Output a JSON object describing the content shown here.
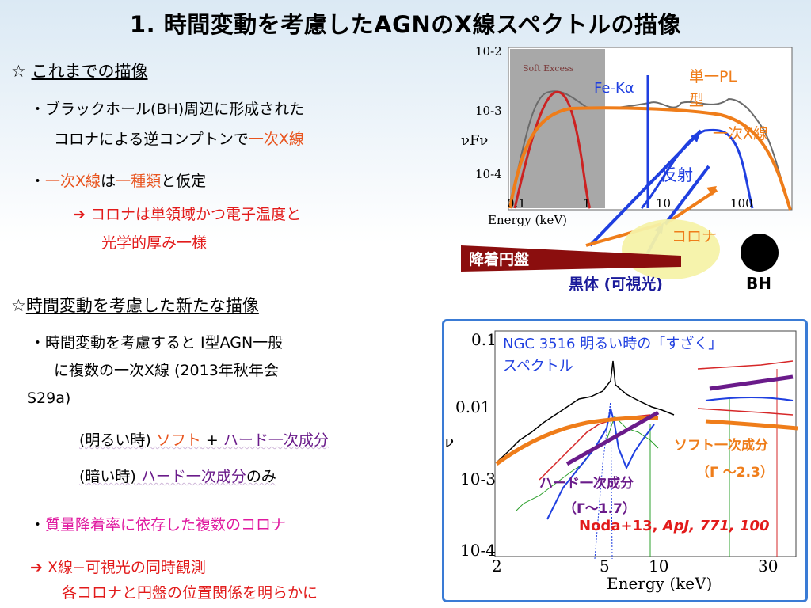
{
  "title": "1. 時間変動を考慮したAGNのX線スペクトルの描像",
  "section1": {
    "star": "☆",
    "heading": "これまでの描像",
    "bullet1_line1": "・ブラックホール(BH)周辺に形成された",
    "bullet1_line2_a": "コロナによる逆コンプトンで",
    "bullet1_line2_b": "一次X線",
    "bullet2_dot": "・",
    "bullet2_a": "一次X線",
    "bullet2_b": "は",
    "bullet2_c": "一種類",
    "bullet2_d": "と仮定",
    "arrow": "➔",
    "conclusion_line1": "コロナは単領域かつ電子温度と",
    "conclusion_line2": "光学的厚み一様"
  },
  "section2": {
    "star": "☆",
    "heading": "時間変動を考慮した新たな描像",
    "bullet1_line1": "・時間変動を考慮すると I型AGN一般",
    "bullet1_line2": "に複数の一次X線 (2013年秋年会",
    "bullet1_line3": "S29a)",
    "bright_a": "(明るい時) ",
    "bright_b": "ソフト",
    "bright_c": " + ",
    "bright_d": "ハード一次成分",
    "dark_a": "(暗い時) ",
    "dark_b": "ハード一次成分",
    "dark_c": "のみ",
    "bullet2_dot": "・",
    "bullet2": "質量降着率に依存した複数のコロナ",
    "arrow": "➔",
    "final_line1": "X線−可視光の同時観測",
    "final_line2": "各コロナと円盤の位置関係を明らかに"
  },
  "fig1": {
    "yticks": [
      "10-2",
      "10-3",
      "10-4"
    ],
    "xticks": [
      "0.1",
      "1",
      "10",
      "100"
    ],
    "ylabel": "νFν",
    "xlabel": "Energy (keV)",
    "soft_excess": "Soft Excess",
    "fe_label": "Fe-Kα",
    "single_pl": "単一PL",
    "single_pl2": "型",
    "primary": "一次X線",
    "reflection": "反射",
    "corona": "コロナ",
    "disk": "降着円盤",
    "blackbody": "黒体 (可視光)",
    "bh": "BH"
  },
  "fig2": {
    "yticks": [
      "0.1",
      "0.01",
      "10-3",
      "10-4"
    ],
    "xticks": [
      "2",
      "5",
      "10",
      "30"
    ],
    "ylabel": "νFν",
    "xlabel": "Energy (keV)",
    "caption_line1": "NGC 3516 明るい時の「すざく」",
    "caption_line2": "スペクトル",
    "soft_label": "ソフト一次成分",
    "soft_gamma": "（Γ 〜2.3）",
    "hard_label": "ハード一次成分",
    "hard_gamma": "（Γ〜1.7）",
    "ref_a": "Noda+13, ",
    "ref_b": "ApJ, 771, 100"
  },
  "colors": {
    "orange": "#ef7d1a",
    "blue": "#1f3fe0",
    "purple": "#6a1b8a",
    "darkred": "#8b0e0e"
  }
}
